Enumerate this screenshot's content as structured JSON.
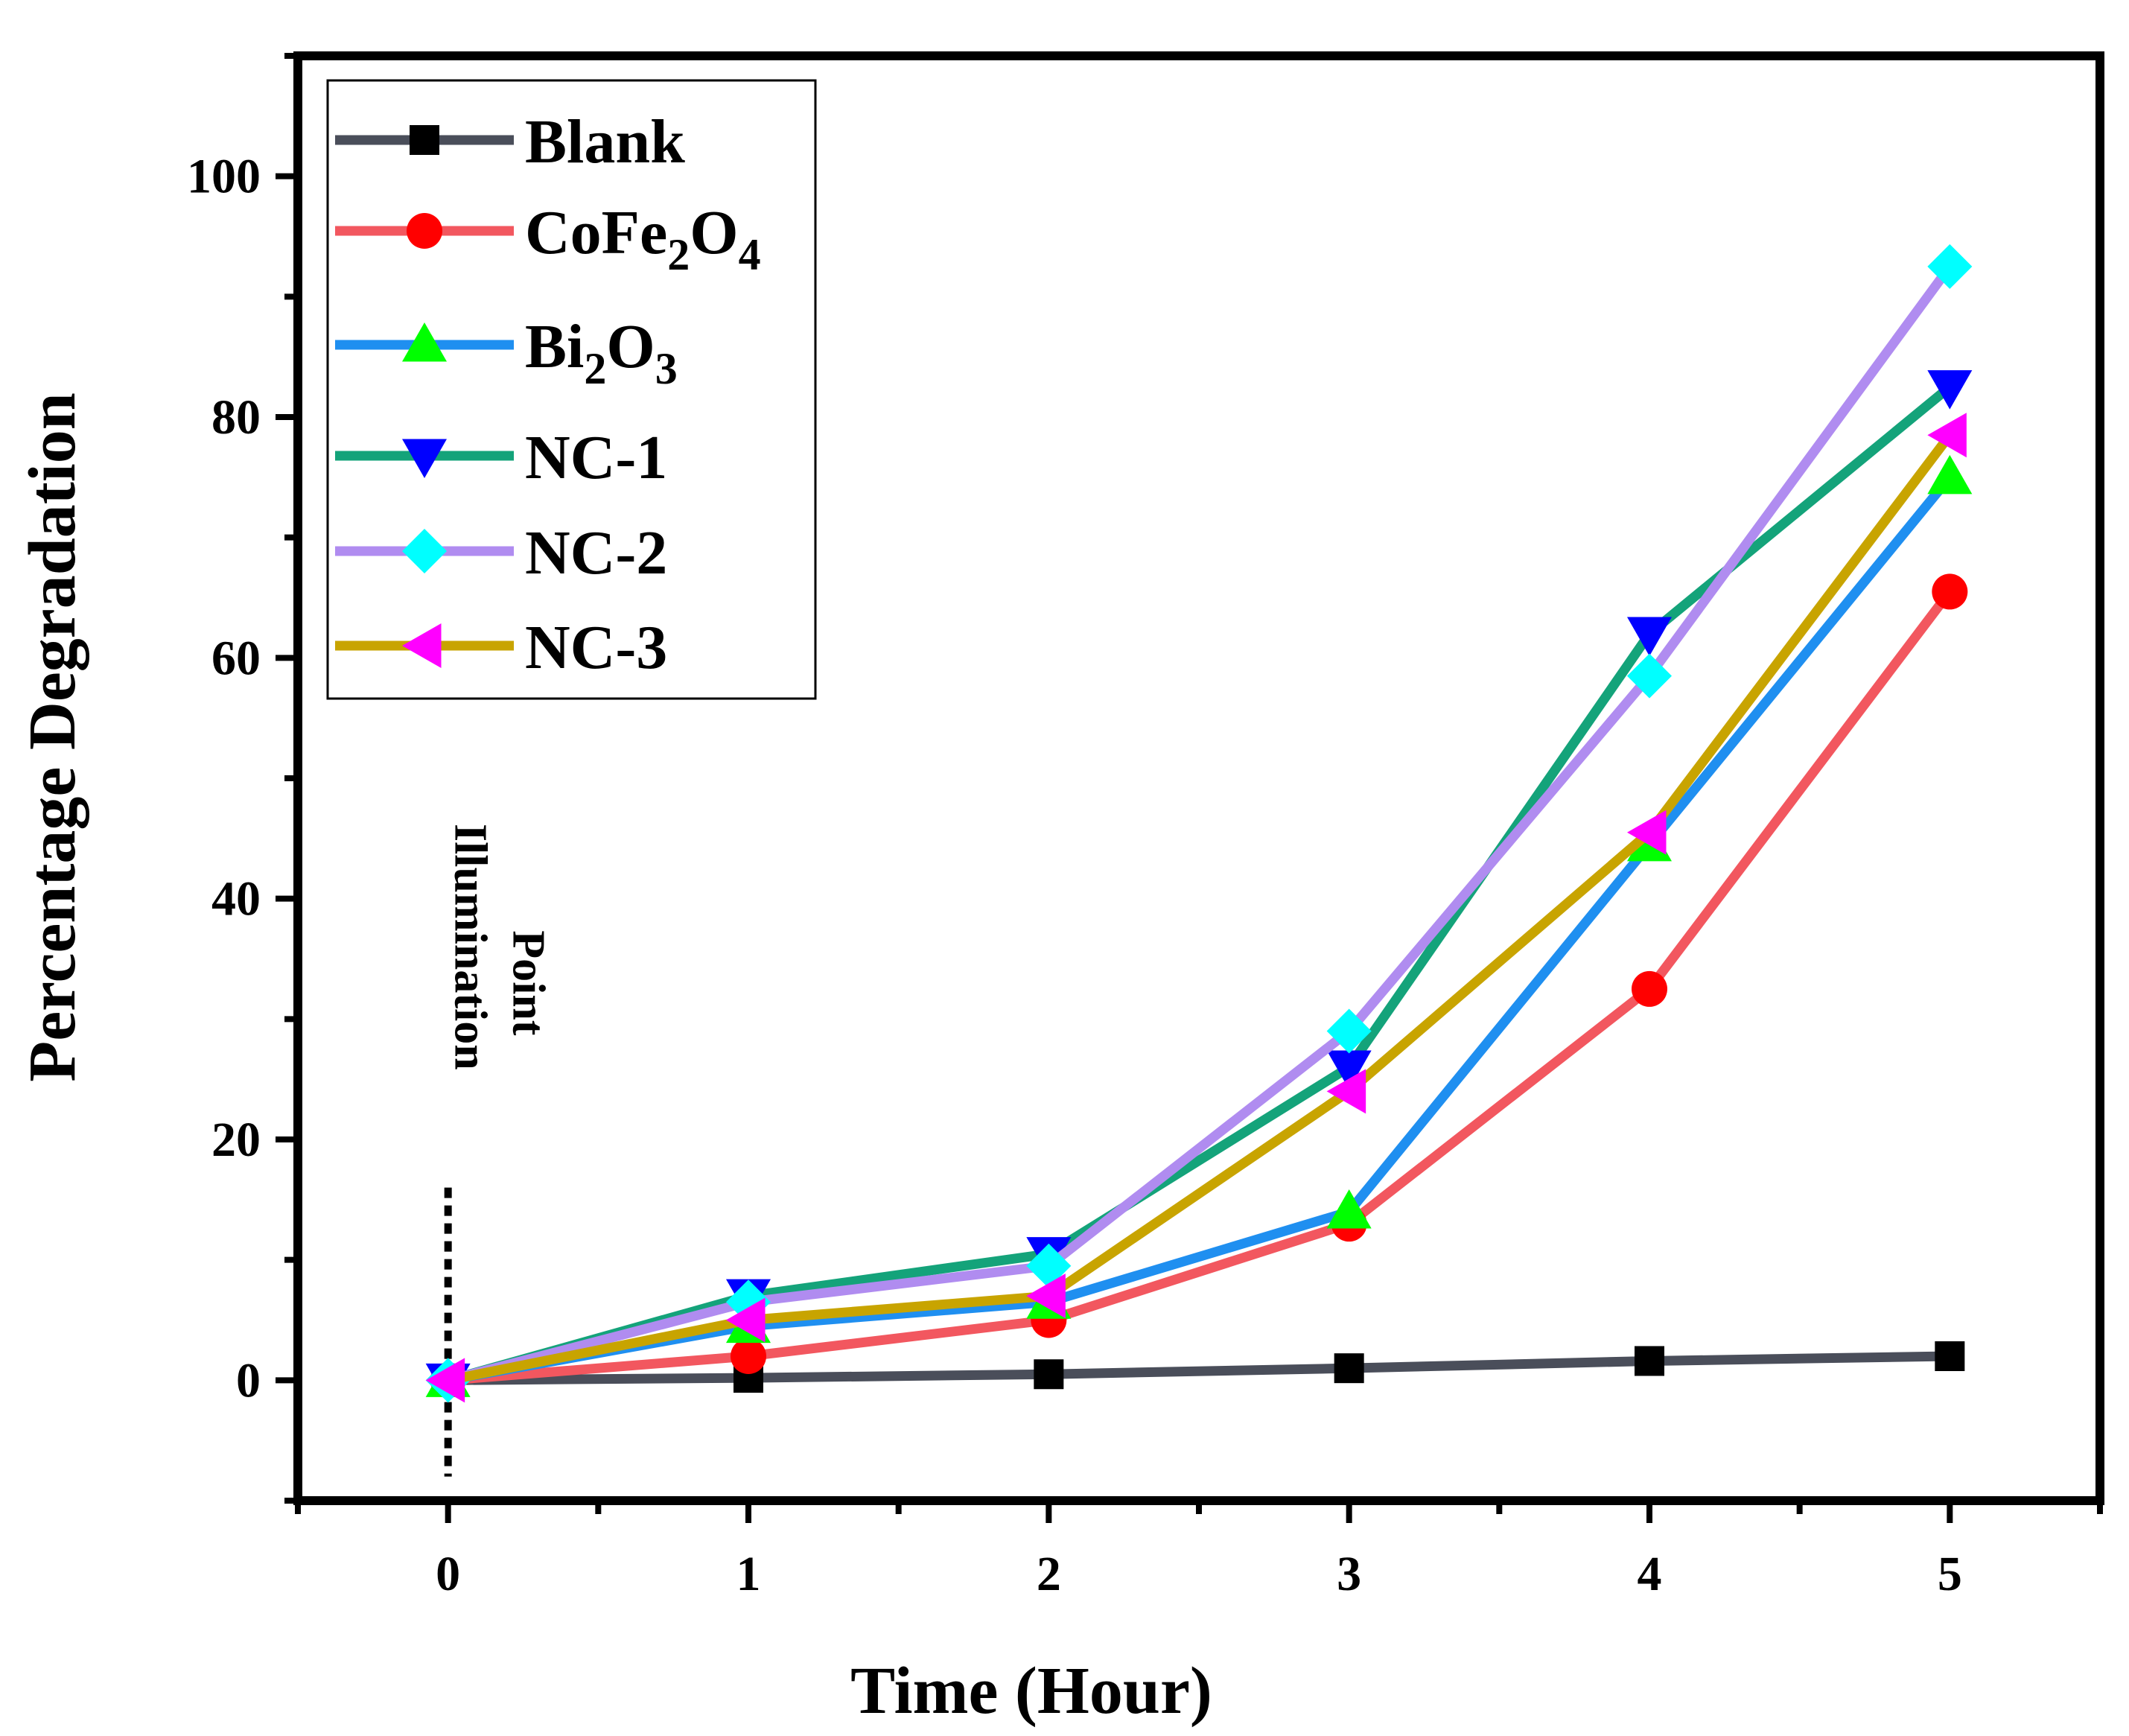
{
  "chart_data": {
    "type": "line",
    "title": "",
    "xlabel": "Time (Hour)",
    "ylabel": "Percentage Degradation",
    "x": [
      0,
      1,
      2,
      3,
      4,
      5
    ],
    "xlim": [
      -0.5,
      5.5
    ],
    "ylim": [
      -10,
      110
    ],
    "xticks": [
      0,
      1,
      2,
      3,
      4,
      5
    ],
    "yticks": [
      0,
      20,
      40,
      60,
      80,
      100
    ],
    "grid": false,
    "legend_position": "top-left",
    "series": [
      {
        "name": "Blank",
        "label_main": "Blank",
        "label_sub": [],
        "line_color": "#4a4e5a",
        "marker": "square",
        "marker_color": "#000000",
        "values": [
          0,
          0.2,
          0.5,
          1.0,
          1.6,
          2.0
        ]
      },
      {
        "name": "CoFe2O4",
        "label_main": "CoFe",
        "label_sub": [
          {
            "sub": "2",
            "text": "O"
          },
          {
            "sub": "4",
            "text": ""
          }
        ],
        "line_color": "#f2575f",
        "marker": "circle",
        "marker_color": "#ff0000",
        "values": [
          0,
          2,
          5,
          13,
          32.5,
          65.5
        ]
      },
      {
        "name": "Bi2O3",
        "label_main": "Bi",
        "label_sub": [
          {
            "sub": "2",
            "text": "O"
          },
          {
            "sub": "3",
            "text": ""
          }
        ],
        "line_color": "#1f8ff0",
        "marker": "triangle-up",
        "marker_color": "#00ff00",
        "values": [
          0,
          4.5,
          6.5,
          14,
          44.5,
          75
        ]
      },
      {
        "name": "NC-1",
        "label_main": "NC-1",
        "label_sub": [],
        "line_color": "#14a37a",
        "marker": "triangle-down",
        "marker_color": "#0000ff",
        "values": [
          0,
          7,
          10.5,
          26,
          62,
          82.5
        ]
      },
      {
        "name": "NC-2",
        "label_main": "NC-2",
        "label_sub": [],
        "line_color": "#b08cf0",
        "marker": "diamond",
        "marker_color": "#00ffff",
        "values": [
          0,
          6.5,
          9.5,
          29,
          58.5,
          92.5
        ]
      },
      {
        "name": "NC-3",
        "label_main": "NC-3",
        "label_sub": [],
        "line_color": "#c8a400",
        "marker": "triangle-left",
        "marker_color": "#ff00ff",
        "values": [
          0,
          5,
          7,
          24,
          45.5,
          78.5
        ]
      }
    ],
    "annotations": [
      {
        "lines": [
          "Illumination",
          "Point"
        ],
        "x": 0
      }
    ]
  }
}
